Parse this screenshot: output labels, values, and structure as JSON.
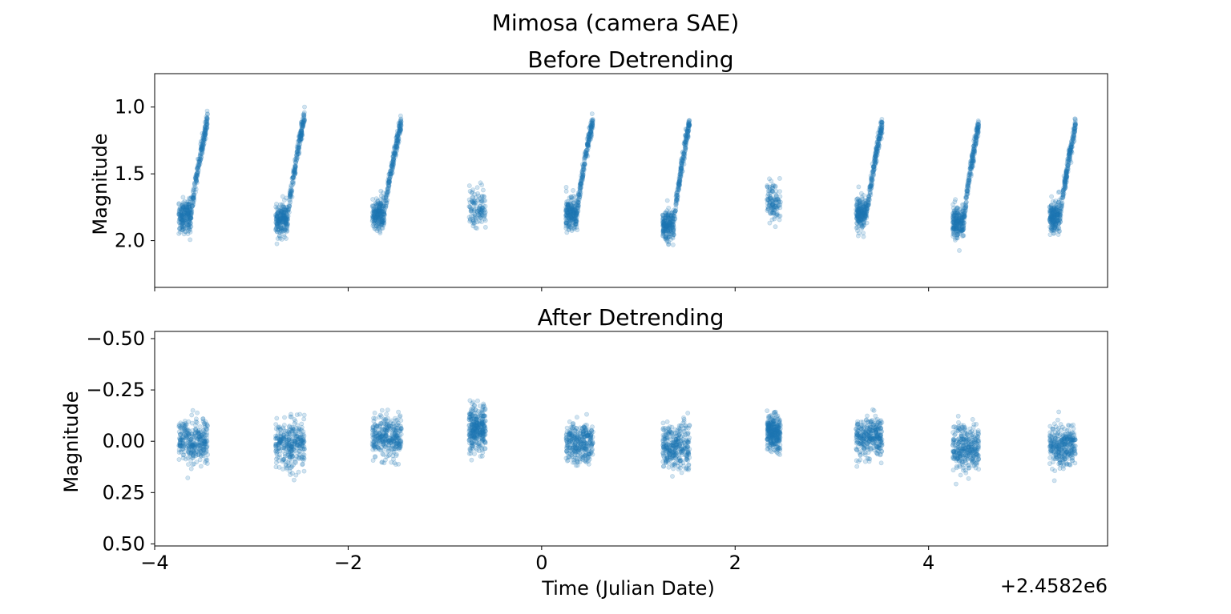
{
  "figure": {
    "suptitle": "Mimosa (camera SAE)",
    "x_offset_label": "+2.4582e6"
  },
  "chart_data": [
    {
      "type": "scatter",
      "title": "Before Detrending",
      "xlabel": "",
      "ylabel": "Magnitude",
      "xlim": [
        -4,
        5.85
      ],
      "ylim": [
        2.35,
        0.75
      ],
      "y_inverted": true,
      "yticks": [
        1.0,
        1.5,
        2.0
      ],
      "ytick_labels": [
        "1.0",
        "1.5",
        "2.0"
      ],
      "xticks": [
        -4,
        -2,
        0,
        2,
        4
      ],
      "xtick_labels_shown": false,
      "grid": false,
      "color": "#1f77b4",
      "alpha": 0.2,
      "groups": [
        {
          "x_start": -3.75,
          "x_end": -3.45,
          "shape": "ramp",
          "mag_base": 1.82,
          "mag_top": 1.08
        },
        {
          "x_start": -2.75,
          "x_end": -2.45,
          "shape": "ramp",
          "mag_base": 1.84,
          "mag_top": 1.06
        },
        {
          "x_start": -1.75,
          "x_end": -1.45,
          "shape": "ramp",
          "mag_base": 1.8,
          "mag_top": 1.11
        },
        {
          "x_start": -0.75,
          "x_end": -0.58,
          "shape": "cluster",
          "mag_base": 1.75,
          "mag_top": 1.75
        },
        {
          "x_start": 0.25,
          "x_end": 0.53,
          "shape": "ramp",
          "mag_base": 1.8,
          "mag_top": 1.09
        },
        {
          "x_start": 1.25,
          "x_end": 1.53,
          "shape": "ramp",
          "mag_base": 1.88,
          "mag_top": 1.1
        },
        {
          "x_start": 2.33,
          "x_end": 2.47,
          "shape": "cluster",
          "mag_base": 1.72,
          "mag_top": 1.72
        },
        {
          "x_start": 3.25,
          "x_end": 3.52,
          "shape": "ramp",
          "mag_base": 1.8,
          "mag_top": 1.13
        },
        {
          "x_start": 4.25,
          "x_end": 4.52,
          "shape": "ramp",
          "mag_base": 1.86,
          "mag_top": 1.12
        },
        {
          "x_start": 5.25,
          "x_end": 5.52,
          "shape": "ramp",
          "mag_base": 1.82,
          "mag_top": 1.13
        }
      ]
    },
    {
      "type": "scatter",
      "title": "After Detrending",
      "xlabel": "Time (Julian Date)",
      "ylabel": "Magnitude",
      "xlim": [
        -4,
        5.85
      ],
      "ylim": [
        0.51,
        -0.535
      ],
      "y_inverted": true,
      "yticks": [
        -0.5,
        -0.25,
        0.0,
        0.25,
        0.5
      ],
      "ytick_labels": [
        "−0.50",
        "−0.25",
        "0.00",
        "0.25",
        "0.50"
      ],
      "xticks": [
        -4,
        -2,
        0,
        2,
        4
      ],
      "xtick_labels": [
        "−4",
        "−2",
        "0",
        "2",
        "4"
      ],
      "grid": false,
      "color": "#1f77b4",
      "alpha": 0.2,
      "groups": [
        {
          "x_start": -3.75,
          "x_end": -3.45,
          "center": 0.0,
          "spread": 0.09
        },
        {
          "x_start": -2.75,
          "x_end": -2.45,
          "center": 0.01,
          "spread": 0.1
        },
        {
          "x_start": -1.75,
          "x_end": -1.45,
          "center": -0.02,
          "spread": 0.08
        },
        {
          "x_start": -0.75,
          "x_end": -0.58,
          "center": -0.06,
          "spread": 0.09
        },
        {
          "x_start": 0.25,
          "x_end": 0.53,
          "center": 0.01,
          "spread": 0.08
        },
        {
          "x_start": 1.25,
          "x_end": 1.53,
          "center": 0.02,
          "spread": 0.09
        },
        {
          "x_start": 2.33,
          "x_end": 2.47,
          "center": -0.04,
          "spread": 0.07
        },
        {
          "x_start": 3.25,
          "x_end": 3.52,
          "center": -0.02,
          "spread": 0.08
        },
        {
          "x_start": 4.25,
          "x_end": 4.52,
          "center": 0.03,
          "spread": 0.09
        },
        {
          "x_start": 5.25,
          "x_end": 5.52,
          "center": 0.02,
          "spread": 0.08
        }
      ]
    }
  ]
}
